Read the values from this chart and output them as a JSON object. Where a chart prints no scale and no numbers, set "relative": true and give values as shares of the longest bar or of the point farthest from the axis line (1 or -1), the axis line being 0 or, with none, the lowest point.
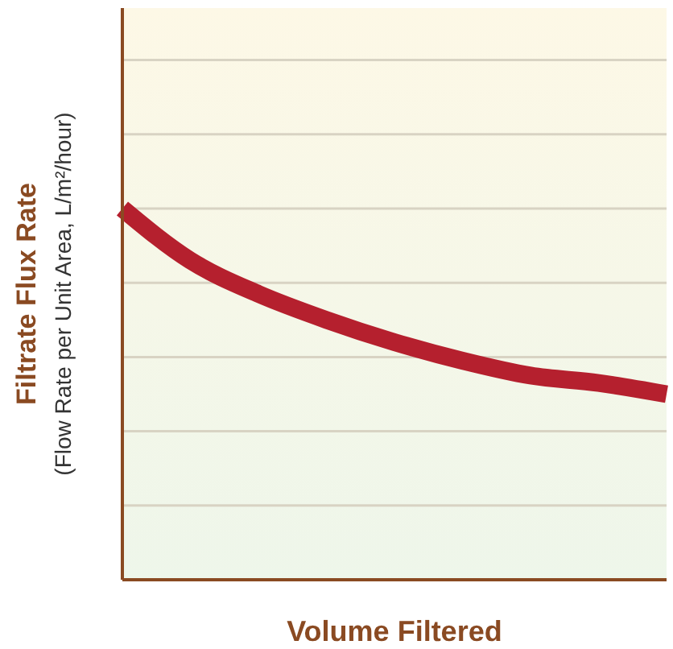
{
  "chart_data": {
    "type": "line",
    "relative": true,
    "xlabel": "Volume Filtered",
    "ylabel": "Filtrate Flux Rate\n(Flow Rate per Unit Area, L/m²/hour)",
    "categories": [
      null,
      null,
      null,
      null,
      null,
      null,
      null,
      null,
      null
    ],
    "values": [
      1,
      0.86,
      0.77,
      0.7,
      0.64,
      0.59,
      0.55,
      0.53,
      0.5
    ],
    "color": "#b5202e",
    "grid": "y",
    "marker": "none"
  }
}
